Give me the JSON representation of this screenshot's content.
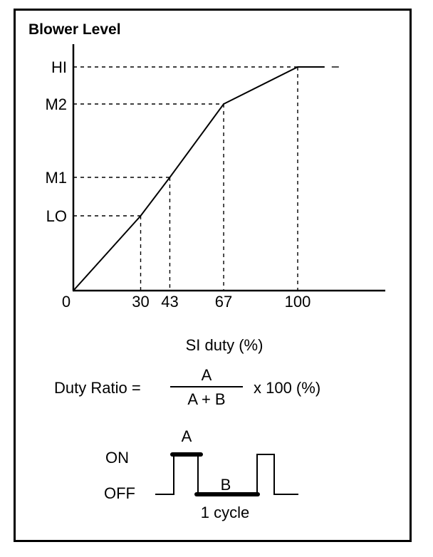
{
  "chart_data": {
    "type": "line",
    "title": "Blower Level",
    "xlabel": "SI duty (%)",
    "ylabel": "",
    "x_tick_labels": [
      "0",
      "30",
      "43",
      "67",
      "100"
    ],
    "y_levels": [
      "LO",
      "M1",
      "M2",
      "HI"
    ],
    "series": [
      {
        "x": [
          0,
          30,
          43,
          67,
          100,
          112
        ],
        "y": [
          "0",
          "LO",
          "M1",
          "M2",
          "HI",
          "HI"
        ]
      }
    ],
    "guide_points": [
      {
        "x": 30,
        "level": "LO"
      },
      {
        "x": 43,
        "level": "M1"
      },
      {
        "x": 67,
        "level": "M2"
      },
      {
        "x": 100,
        "level": "HI"
      }
    ],
    "grid": false
  },
  "formula": {
    "lhs": "Duty Ratio =",
    "numerator": "A",
    "denominator": "A + B",
    "rhs": "x 100 (%)"
  },
  "waveform": {
    "on_label": "ON",
    "off_label": "OFF",
    "a_label": "A",
    "b_label": "B",
    "cycle_label": "1 cycle"
  }
}
